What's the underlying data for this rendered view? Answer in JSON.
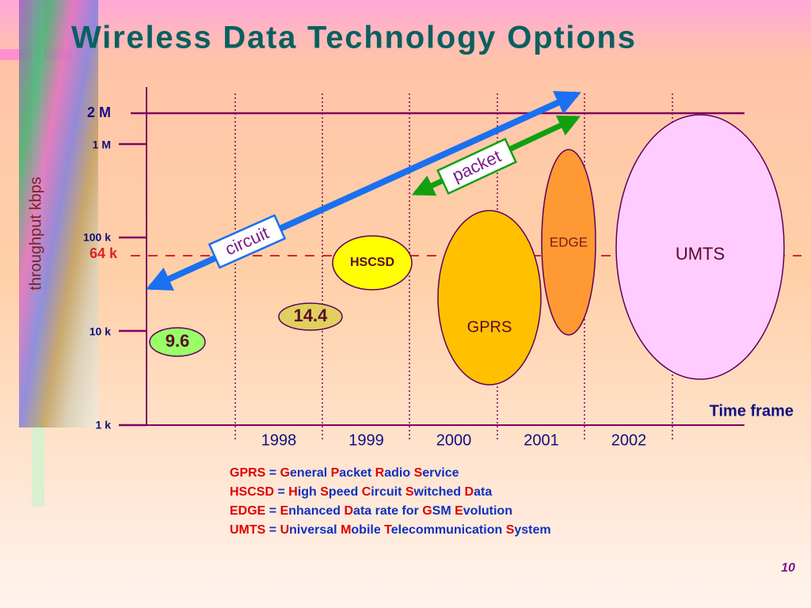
{
  "title": "Wireless Data Technology Options",
  "y_axis_label": "throughput kbps",
  "y_labels": [
    "2 M",
    "1 M",
    "100 k",
    "64 k",
    "10 k",
    "1 k"
  ],
  "years": [
    "1998",
    "1999",
    "2000",
    "2001",
    "2002"
  ],
  "x_axis_label": "Time frame",
  "bubbles": [
    "9.6",
    "14.4",
    "HSCSD",
    "GPRS",
    "EDGE",
    "UMTS"
  ],
  "arrows": [
    "circuit",
    "packet"
  ],
  "legend": [
    [
      {
        "text": "GPRS",
        "color": "#e00000"
      },
      {
        "text": " = ",
        "color": "#1030c0"
      },
      {
        "text": "G",
        "color": "#e00000"
      },
      {
        "text": "eneral ",
        "color": "#1030c0"
      },
      {
        "text": "P",
        "color": "#e00000"
      },
      {
        "text": "acket ",
        "color": "#1030c0"
      },
      {
        "text": "R",
        "color": "#e00000"
      },
      {
        "text": "adio ",
        "color": "#1030c0"
      },
      {
        "text": "S",
        "color": "#e00000"
      },
      {
        "text": "ervice",
        "color": "#1030c0"
      }
    ],
    [
      {
        "text": "HSCSD",
        "color": "#e00000"
      },
      {
        "text": " = ",
        "color": "#1030c0"
      },
      {
        "text": "H",
        "color": "#e00000"
      },
      {
        "text": "igh ",
        "color": "#1030c0"
      },
      {
        "text": "S",
        "color": "#e00000"
      },
      {
        "text": "peed ",
        "color": "#1030c0"
      },
      {
        "text": "C",
        "color": "#e00000"
      },
      {
        "text": "ircuit ",
        "color": "#1030c0"
      },
      {
        "text": "S",
        "color": "#e00000"
      },
      {
        "text": "witched ",
        "color": "#1030c0"
      },
      {
        "text": "D",
        "color": "#e00000"
      },
      {
        "text": "ata",
        "color": "#1030c0"
      }
    ],
    [
      {
        "text": "EDGE",
        "color": "#e00000"
      },
      {
        "text": " = ",
        "color": "#1030c0"
      },
      {
        "text": "E",
        "color": "#e00000"
      },
      {
        "text": "nhanced ",
        "color": "#1030c0"
      },
      {
        "text": "D",
        "color": "#e00000"
      },
      {
        "text": "ata rate for ",
        "color": "#1030c0"
      },
      {
        "text": "G",
        "color": "#e00000"
      },
      {
        "text": "SM ",
        "color": "#1030c0"
      },
      {
        "text": "E",
        "color": "#e00000"
      },
      {
        "text": "volution",
        "color": "#1030c0"
      }
    ],
    [
      {
        "text": "UMTS",
        "color": "#e00000"
      },
      {
        "text": " = ",
        "color": "#1030c0"
      },
      {
        "text": "U",
        "color": "#e00000"
      },
      {
        "text": "niversal ",
        "color": "#1030c0"
      },
      {
        "text": "M",
        "color": "#e00000"
      },
      {
        "text": "obile ",
        "color": "#1030c0"
      },
      {
        "text": "T",
        "color": "#e00000"
      },
      {
        "text": "elecommunication ",
        "color": "#1030c0"
      },
      {
        "text": "S",
        "color": "#e00000"
      },
      {
        "text": "ystem",
        "color": "#1030c0"
      }
    ]
  ],
  "page_number": "10"
}
